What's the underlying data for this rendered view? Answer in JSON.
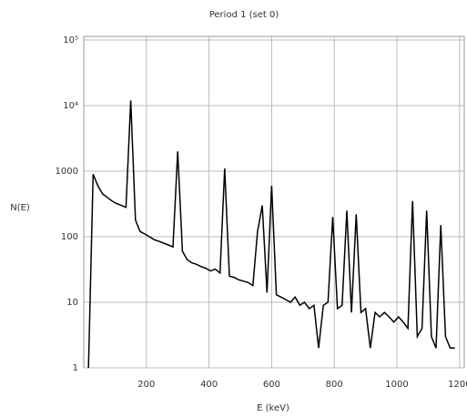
{
  "chart_data": {
    "type": "line",
    "title": "Period 1 (set 0)",
    "x_label": "E (keV)",
    "y_label": "N(E)",
    "log_y": true,
    "grid": true,
    "x": [
      15,
      30,
      45,
      60,
      75,
      90,
      105,
      120,
      135,
      150,
      165,
      180,
      195,
      210,
      225,
      240,
      255,
      270,
      285,
      300,
      315,
      330,
      345,
      360,
      375,
      390,
      405,
      420,
      435,
      450,
      465,
      480,
      495,
      510,
      525,
      540,
      555,
      570,
      585,
      600,
      615,
      630,
      645,
      660,
      675,
      690,
      705,
      720,
      735,
      750,
      765,
      780,
      795,
      810,
      825,
      840,
      855,
      870,
      885,
      900,
      915,
      930,
      945,
      960,
      975,
      990,
      1005,
      1020,
      1035,
      1050,
      1065,
      1080,
      1095,
      1110,
      1125,
      1140,
      1155,
      1170,
      1185
    ],
    "series": [
      {
        "name": "N(E)",
        "color": "#000000",
        "values": [
          1,
          900,
          600,
          450,
          400,
          350,
          320,
          300,
          280,
          12000,
          180,
          120,
          110,
          100,
          90,
          85,
          80,
          75,
          70,
          2000,
          60,
          45,
          40,
          38,
          35,
          33,
          30,
          32,
          28,
          1100,
          25,
          24,
          22,
          21,
          20,
          18,
          120,
          300,
          14,
          600,
          13,
          12,
          11,
          10,
          12,
          9,
          10,
          8,
          9,
          2,
          9,
          10,
          200,
          8,
          9,
          250,
          7,
          220,
          7,
          8,
          2,
          7,
          6,
          7,
          6,
          5,
          6,
          5,
          4,
          350,
          3,
          4,
          250,
          3,
          2,
          150,
          3,
          2,
          2
        ]
      }
    ],
    "xlim": [
      0,
      1215
    ],
    "ylim": [
      1,
      100000
    ],
    "xticks": [
      200,
      400,
      600,
      800,
      1000,
      1200
    ],
    "yticks": [
      1,
      10,
      100,
      1000,
      {
        "value": 10000,
        "label": "10⁴"
      },
      {
        "value": 100000,
        "label": "10⁵"
      }
    ]
  }
}
